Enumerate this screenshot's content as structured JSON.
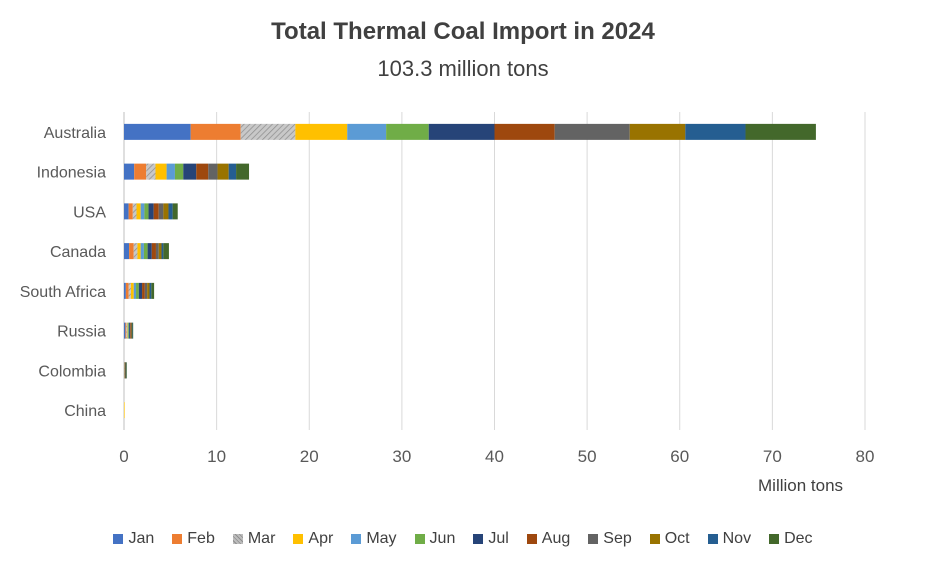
{
  "chart_data": {
    "type": "bar",
    "orientation": "horizontal",
    "stacked": true,
    "title": "Total Thermal Coal Import in 2024",
    "subtitle": "103.3 million tons",
    "xlabel": "Million tons",
    "ylabel": "",
    "xlim": [
      0,
      80
    ],
    "xticks": [
      0,
      10,
      20,
      30,
      40,
      50,
      60,
      70,
      80
    ],
    "grid": "vertical",
    "legend_position": "bottom",
    "categories": [
      "Australia",
      "Indonesia",
      "USA",
      "Canada",
      "South Africa",
      "Russia",
      "Colombia",
      "China"
    ],
    "series": [
      {
        "name": "Jan",
        "color": "#4472C4",
        "values": [
          7.2,
          1.1,
          0.5,
          0.55,
          0.2,
          0.15,
          0.02,
          0.0
        ]
      },
      {
        "name": "Feb",
        "color": "#ED7D31",
        "values": [
          5.4,
          1.3,
          0.45,
          0.5,
          0.3,
          0.1,
          0.02,
          0.0
        ]
      },
      {
        "name": "Mar",
        "color": "#A5A5A5",
        "pattern": "hatch",
        "values": [
          5.9,
          1.0,
          0.4,
          0.4,
          0.25,
          0.08,
          0.02,
          0.0
        ]
      },
      {
        "name": "Apr",
        "color": "#FFC000",
        "values": [
          5.6,
          1.2,
          0.45,
          0.35,
          0.3,
          0.07,
          0.02,
          0.03
        ]
      },
      {
        "name": "May",
        "color": "#5B9BD5",
        "values": [
          4.2,
          0.9,
          0.4,
          0.35,
          0.25,
          0.07,
          0.02,
          0.0
        ]
      },
      {
        "name": "Jun",
        "color": "#70AD47",
        "values": [
          4.6,
          0.9,
          0.45,
          0.4,
          0.3,
          0.08,
          0.02,
          0.0
        ]
      },
      {
        "name": "Jul",
        "color": "#264478",
        "values": [
          7.1,
          1.4,
          0.55,
          0.45,
          0.35,
          0.1,
          0.03,
          0.0
        ]
      },
      {
        "name": "Aug",
        "color": "#9E480E",
        "values": [
          6.5,
          1.3,
          0.55,
          0.45,
          0.3,
          0.08,
          0.02,
          0.0
        ]
      },
      {
        "name": "Sep",
        "color": "#636363",
        "values": [
          8.1,
          1.0,
          0.5,
          0.3,
          0.25,
          0.08,
          0.02,
          0.0
        ]
      },
      {
        "name": "Oct",
        "color": "#997300",
        "values": [
          6.0,
          1.2,
          0.55,
          0.3,
          0.25,
          0.06,
          0.02,
          0.0
        ]
      },
      {
        "name": "Nov",
        "color": "#255E91",
        "values": [
          6.5,
          0.8,
          0.45,
          0.2,
          0.2,
          0.05,
          0.02,
          0.0
        ]
      },
      {
        "name": "Dec",
        "color": "#43682B",
        "values": [
          7.6,
          1.4,
          0.55,
          0.6,
          0.3,
          0.07,
          0.02,
          0.0
        ]
      }
    ]
  }
}
